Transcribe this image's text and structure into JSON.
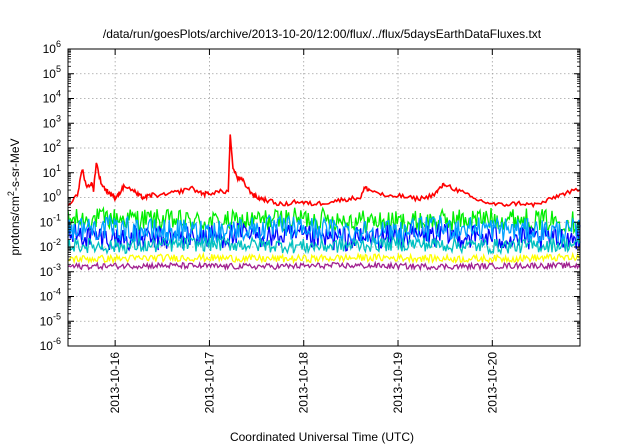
{
  "chart_data": {
    "type": "line",
    "title": "/data/run/goesPlots/archive/2013-10-20/12:00/flux/../flux/5daysEarthDataFluxes.txt",
    "xlabel": "Coordinated Universal Time (UTC)",
    "ylabel": {
      "base": "protons/cm",
      "sup": "2",
      "rest": "-s-sr-MeV"
    },
    "xlim": [
      0.0,
      5.43
    ],
    "ylim": [
      1e-06,
      1000000.0
    ],
    "yscale": "log",
    "grid": true,
    "x_ticks": [
      {
        "x": 0.5,
        "label": "2013-10-16"
      },
      {
        "x": 1.5,
        "label": "2013-10-17"
      },
      {
        "x": 2.5,
        "label": "2013-10-18"
      },
      {
        "x": 3.5,
        "label": "2013-10-19"
      },
      {
        "x": 4.5,
        "label": "2013-10-20"
      }
    ],
    "y_ticks": [
      {
        "value": 1000000.0,
        "base": "10",
        "exp": "6"
      },
      {
        "value": 100000.0,
        "base": "10",
        "exp": "5"
      },
      {
        "value": 10000.0,
        "base": "10",
        "exp": "4"
      },
      {
        "value": 1000.0,
        "base": "10",
        "exp": "3"
      },
      {
        "value": 100.0,
        "base": "10",
        "exp": "2"
      },
      {
        "value": 10.0,
        "base": "10",
        "exp": "1"
      },
      {
        "value": 1.0,
        "base": "10",
        "exp": "0"
      },
      {
        "value": 0.1,
        "base": "10",
        "exp": "-1"
      },
      {
        "value": 0.01,
        "base": "10",
        "exp": "-2"
      },
      {
        "value": 0.001,
        "base": "10",
        "exp": "-3"
      },
      {
        "value": 0.0001,
        "base": "10",
        "exp": "-4"
      },
      {
        "value": 1e-05,
        "base": "10",
        "exp": "-5"
      },
      {
        "value": 1e-06,
        "base": "10",
        "exp": "-6"
      }
    ],
    "series": [
      {
        "color": "#ff0000",
        "x": [
          0.0,
          0.1,
          0.15,
          0.2,
          0.25,
          0.27,
          0.3,
          0.35,
          0.4,
          0.45,
          0.47,
          0.5,
          0.55,
          0.6,
          0.7,
          0.75,
          0.8,
          0.85,
          0.9,
          1.0,
          1.1,
          1.2,
          1.3,
          1.4,
          1.45,
          1.5,
          1.6,
          1.7,
          1.72,
          1.75,
          1.8,
          1.85,
          1.9,
          1.95,
          2.0,
          2.05,
          2.1,
          2.2,
          2.3,
          2.4,
          2.5,
          2.6,
          2.7,
          2.8,
          2.9,
          3.0,
          3.1,
          3.15,
          3.2,
          3.3,
          3.4,
          3.5,
          3.6,
          3.7,
          3.8,
          3.9,
          3.95,
          4.0,
          4.1,
          4.2,
          4.3,
          4.4,
          4.5,
          4.6,
          4.7,
          4.8,
          4.9,
          5.0,
          5.1,
          5.2,
          5.3,
          5.43
        ],
        "y": [
          0.5,
          1.2,
          15,
          2.5,
          4,
          2.0,
          25,
          4,
          2,
          1.5,
          1.2,
          1.0,
          1.6,
          3,
          1.8,
          1.2,
          1.0,
          1.1,
          1.3,
          1.2,
          1.5,
          1.8,
          2.5,
          1.6,
          1.4,
          1.5,
          1.7,
          1.8,
          350,
          15,
          6,
          5,
          2.5,
          1.5,
          1.0,
          0.9,
          0.8,
          0.6,
          0.5,
          0.7,
          0.6,
          0.55,
          0.6,
          0.7,
          0.8,
          0.9,
          1.0,
          2.5,
          2.0,
          1.5,
          1.0,
          1.2,
          1.0,
          0.9,
          1.0,
          1.5,
          2.5,
          3.5,
          2.2,
          1.5,
          0.9,
          0.7,
          0.55,
          0.5,
          0.55,
          0.6,
          0.5,
          0.55,
          0.8,
          1.2,
          1.6,
          2.0
        ]
      },
      {
        "color": "#00ee00",
        "level": 0.12,
        "amplitude": 0.45
      },
      {
        "color": "#00a0ff",
        "level": 0.05,
        "amplitude": 0.5
      },
      {
        "color": "#0000ff",
        "level": 0.025,
        "amplitude": 0.5
      },
      {
        "color": "#00c0c0",
        "level": 0.012,
        "amplitude": 0.3
      },
      {
        "color": "#ffff00",
        "level": 0.0035,
        "amplitude": 0.15
      },
      {
        "color": "#a0208f",
        "level": 0.0017,
        "amplitude": 0.12
      }
    ]
  }
}
